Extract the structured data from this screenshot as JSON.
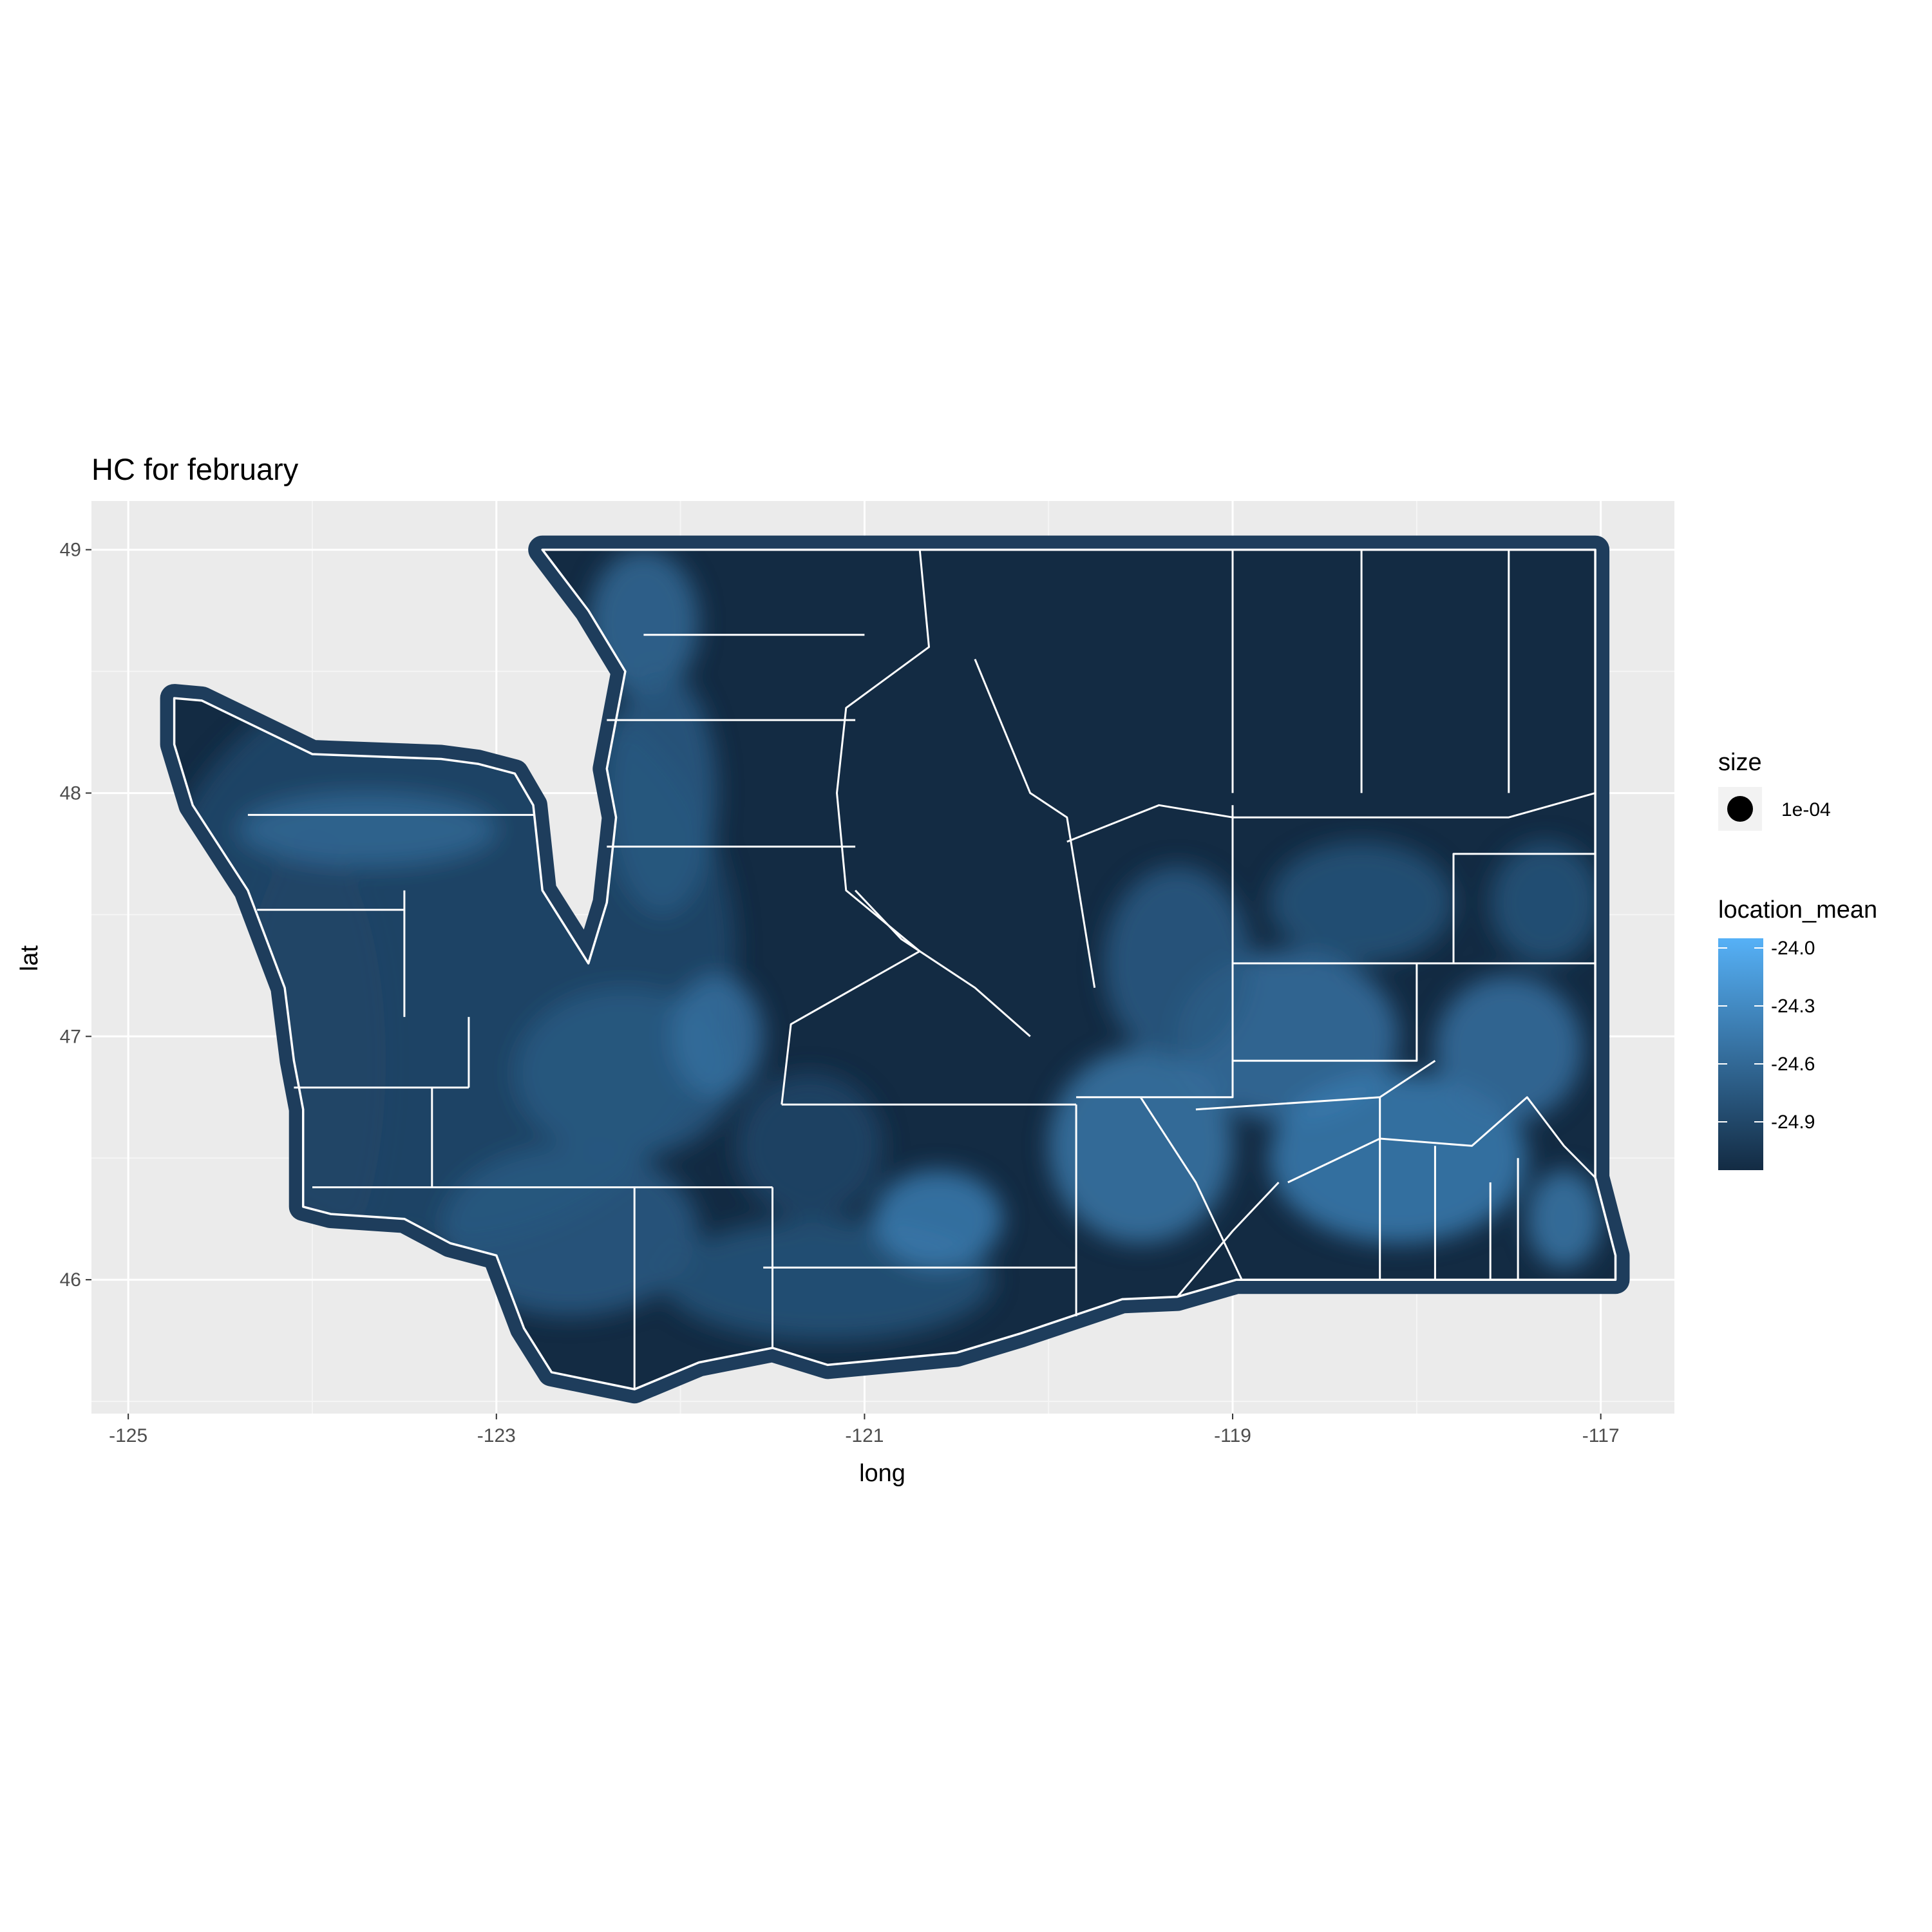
{
  "chart_data": {
    "type": "map",
    "title": "HC for february",
    "xlabel": "long",
    "ylabel": "lat",
    "xlim": [
      -125.2,
      -116.6
    ],
    "ylim": [
      45.45,
      49.2
    ],
    "x_ticks": [
      {
        "value": -125,
        "label": "-125"
      },
      {
        "value": -123,
        "label": "-123"
      },
      {
        "value": -121,
        "label": "-121"
      },
      {
        "value": -119,
        "label": "-119"
      },
      {
        "value": -117,
        "label": "-117"
      }
    ],
    "y_ticks": [
      {
        "value": 46,
        "label": "46"
      },
      {
        "value": 47,
        "label": "47"
      },
      {
        "value": 48,
        "label": "48"
      },
      {
        "value": 49,
        "label": "49"
      }
    ],
    "grid": true,
    "panel_color": "#ebebeb",
    "low_color": "#132b43",
    "high_color": "#56b1f7",
    "border_color": "#ffffff",
    "color_range": [
      -25.15,
      -23.95
    ],
    "legend": {
      "size": {
        "title": "size",
        "label": "1e-04"
      },
      "color": {
        "title": "location_mean",
        "ticks": [
          {
            "value": -24.0,
            "label": "-24.0"
          },
          {
            "value": -24.3,
            "label": "-24.3"
          },
          {
            "value": -24.6,
            "label": "-24.6"
          },
          {
            "value": -24.9,
            "label": "-24.9"
          }
        ]
      }
    },
    "state_outline": [
      [
        -124.75,
        48.39
      ],
      [
        -124.6,
        48.38
      ],
      [
        -124.0,
        48.16
      ],
      [
        -123.3,
        48.14
      ],
      [
        -123.1,
        48.12
      ],
      [
        -122.9,
        48.08
      ],
      [
        -122.8,
        47.95
      ],
      [
        -122.75,
        47.6
      ],
      [
        -122.5,
        47.3
      ],
      [
        -122.4,
        47.55
      ],
      [
        -122.35,
        47.9
      ],
      [
        -122.4,
        48.1
      ],
      [
        -122.3,
        48.5
      ],
      [
        -122.5,
        48.75
      ],
      [
        -122.75,
        49.0
      ],
      [
        -117.03,
        49.0
      ],
      [
        -117.03,
        46.42
      ],
      [
        -116.92,
        46.1
      ],
      [
        -116.92,
        46.0
      ],
      [
        -118.98,
        46.0
      ],
      [
        -119.3,
        45.93
      ],
      [
        -119.6,
        45.92
      ],
      [
        -120.15,
        45.78
      ],
      [
        -120.5,
        45.7
      ],
      [
        -121.2,
        45.65
      ],
      [
        -121.5,
        45.72
      ],
      [
        -121.9,
        45.66
      ],
      [
        -122.25,
        45.55
      ],
      [
        -122.7,
        45.62
      ],
      [
        -122.85,
        45.8
      ],
      [
        -123.0,
        46.1
      ],
      [
        -123.25,
        46.15
      ],
      [
        -123.5,
        46.25
      ],
      [
        -123.9,
        46.27
      ],
      [
        -124.05,
        46.3
      ],
      [
        -124.05,
        46.7
      ],
      [
        -124.1,
        46.9
      ],
      [
        -124.15,
        47.2
      ],
      [
        -124.35,
        47.6
      ],
      [
        -124.65,
        47.95
      ],
      [
        -124.75,
        48.2
      ]
    ],
    "county_lines": [
      [
        [
          -124.35,
          47.91
        ],
        [
          -122.8,
          47.91
        ]
      ],
      [
        [
          -124.3,
          47.52
        ],
        [
          -123.5,
          47.52
        ]
      ],
      [
        [
          -123.5,
          47.6
        ],
        [
          -123.5,
          47.08
        ]
      ],
      [
        [
          -124.1,
          46.79
        ],
        [
          -123.15,
          46.79
        ]
      ],
      [
        [
          -123.15,
          47.08
        ],
        [
          -123.15,
          46.79
        ]
      ],
      [
        [
          -123.35,
          46.79
        ],
        [
          -123.35,
          46.38
        ]
      ],
      [
        [
          -124.0,
          46.38
        ],
        [
          -121.5,
          46.38
        ]
      ],
      [
        [
          -122.25,
          46.38
        ],
        [
          -122.25,
          45.55
        ]
      ],
      [
        [
          -121.5,
          46.38
        ],
        [
          -121.5,
          45.72
        ]
      ],
      [
        [
          -121.55,
          46.05
        ],
        [
          -119.85,
          46.05
        ]
      ],
      [
        [
          -119.85,
          46.72
        ],
        [
          -119.85,
          45.85
        ]
      ],
      [
        [
          -121.45,
          46.72
        ],
        [
          -119.85,
          46.72
        ]
      ],
      [
        [
          -122.2,
          48.65
        ],
        [
          -121.0,
          48.65
        ]
      ],
      [
        [
          -122.4,
          48.3
        ],
        [
          -121.05,
          48.3
        ]
      ],
      [
        [
          -122.4,
          47.78
        ],
        [
          -121.05,
          47.78
        ]
      ],
      [
        [
          -120.7,
          49.0
        ],
        [
          -120.65,
          48.6
        ],
        [
          -121.1,
          48.35
        ],
        [
          -121.15,
          48.0
        ],
        [
          -121.1,
          47.6
        ],
        [
          -120.7,
          47.35
        ],
        [
          -121.4,
          47.05
        ],
        [
          -121.45,
          46.72
        ]
      ],
      [
        [
          -120.1,
          47.0
        ],
        [
          -120.4,
          47.2
        ],
        [
          -120.8,
          47.4
        ],
        [
          -121.05,
          47.6
        ]
      ],
      [
        [
          -120.4,
          48.55
        ],
        [
          -120.1,
          48.0
        ],
        [
          -119.9,
          47.9
        ],
        [
          -119.75,
          47.2
        ]
      ],
      [
        [
          -119.9,
          47.8
        ],
        [
          -119.4,
          47.95
        ],
        [
          -119.0,
          47.9
        ]
      ],
      [
        [
          -119.0,
          47.95
        ],
        [
          -119.0,
          46.75
        ],
        [
          -119.85,
          46.75
        ]
      ],
      [
        [
          -119.0,
          47.3
        ],
        [
          -117.03,
          47.3
        ]
      ],
      [
        [
          -118.0,
          47.3
        ],
        [
          -118.0,
          46.9
        ],
        [
          -119.0,
          46.9
        ]
      ],
      [
        [
          -118.3,
          48.0
        ],
        [
          -118.3,
          49.0
        ]
      ],
      [
        [
          -119.0,
          48.0
        ],
        [
          -119.0,
          49.0
        ]
      ],
      [
        [
          -117.5,
          48.0
        ],
        [
          -117.5,
          49.0
        ]
      ],
      [
        [
          -119.0,
          47.9
        ],
        [
          -117.5,
          47.9
        ],
        [
          -117.03,
          48.0
        ]
      ],
      [
        [
          -117.8,
          47.3
        ],
        [
          -117.8,
          47.75
        ],
        [
          -117.03,
          47.75
        ]
      ],
      [
        [
          -119.5,
          46.75
        ],
        [
          -119.2,
          46.4
        ],
        [
          -118.95,
          46.0
        ]
      ],
      [
        [
          -119.2,
          46.7
        ],
        [
          -118.2,
          46.75
        ],
        [
          -117.9,
          46.9
        ]
      ],
      [
        [
          -118.2,
          46.75
        ],
        [
          -118.2,
          46.0
        ]
      ],
      [
        [
          -118.7,
          46.4
        ],
        [
          -118.2,
          46.58
        ],
        [
          -117.7,
          46.55
        ],
        [
          -117.4,
          46.75
        ],
        [
          -117.2,
          46.55
        ],
        [
          -117.03,
          46.42
        ]
      ],
      [
        [
          -117.9,
          46.55
        ],
        [
          -117.9,
          46.0
        ]
      ],
      [
        [
          -117.6,
          46.4
        ],
        [
          -117.6,
          46.0
        ]
      ],
      [
        [
          -117.45,
          46.5
        ],
        [
          -117.45,
          46.0
        ]
      ],
      [
        [
          -119.3,
          45.93
        ],
        [
          -119.0,
          46.2
        ],
        [
          -118.75,
          46.4
        ]
      ]
    ]
  }
}
